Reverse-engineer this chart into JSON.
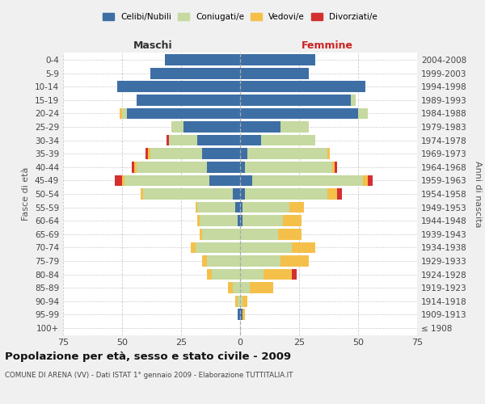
{
  "age_groups": [
    "100+",
    "95-99",
    "90-94",
    "85-89",
    "80-84",
    "75-79",
    "70-74",
    "65-69",
    "60-64",
    "55-59",
    "50-54",
    "45-49",
    "40-44",
    "35-39",
    "30-34",
    "25-29",
    "20-24",
    "15-19",
    "10-14",
    "5-9",
    "0-4"
  ],
  "birth_years": [
    "≤ 1908",
    "1909-1913",
    "1914-1918",
    "1919-1923",
    "1924-1928",
    "1929-1933",
    "1934-1938",
    "1939-1943",
    "1944-1948",
    "1949-1953",
    "1954-1958",
    "1959-1963",
    "1964-1968",
    "1969-1973",
    "1974-1978",
    "1979-1983",
    "1984-1988",
    "1989-1993",
    "1994-1998",
    "1999-2003",
    "2004-2008"
  ],
  "males": {
    "celibi": [
      0,
      1,
      0,
      0,
      0,
      0,
      0,
      0,
      1,
      2,
      3,
      13,
      14,
      16,
      18,
      24,
      48,
      44,
      52,
      38,
      32
    ],
    "coniugati": [
      0,
      0,
      1,
      3,
      12,
      14,
      19,
      16,
      16,
      16,
      38,
      36,
      30,
      22,
      12,
      5,
      2,
      0,
      0,
      0,
      0
    ],
    "vedovi": [
      0,
      0,
      1,
      2,
      2,
      2,
      2,
      1,
      1,
      1,
      1,
      1,
      1,
      1,
      0,
      0,
      1,
      0,
      0,
      0,
      0
    ],
    "divorziati": [
      0,
      0,
      0,
      0,
      0,
      0,
      0,
      0,
      0,
      0,
      0,
      3,
      1,
      1,
      1,
      0,
      0,
      0,
      0,
      0,
      0
    ]
  },
  "females": {
    "nubili": [
      0,
      1,
      0,
      0,
      0,
      0,
      0,
      0,
      1,
      1,
      2,
      5,
      2,
      3,
      9,
      17,
      50,
      47,
      53,
      29,
      32
    ],
    "coniugate": [
      0,
      0,
      1,
      4,
      10,
      17,
      22,
      16,
      17,
      20,
      35,
      47,
      37,
      34,
      23,
      12,
      4,
      2,
      0,
      0,
      0
    ],
    "vedove": [
      0,
      1,
      2,
      10,
      12,
      12,
      10,
      10,
      8,
      6,
      4,
      2,
      1,
      1,
      0,
      0,
      0,
      0,
      0,
      0,
      0
    ],
    "divorziate": [
      0,
      0,
      0,
      0,
      2,
      0,
      0,
      0,
      0,
      0,
      2,
      2,
      1,
      0,
      0,
      0,
      0,
      0,
      0,
      0,
      0
    ]
  },
  "colors": {
    "celibi": "#3d6fa5",
    "coniugati": "#c5d9a0",
    "vedovi": "#f5c04a",
    "divorziati": "#d43030"
  },
  "xlim": 75,
  "title": "Popolazione per età, sesso e stato civile - 2009",
  "subtitle": "COMUNE DI ARENA (VV) - Dati ISTAT 1° gennaio 2009 - Elaborazione TUTTITALIA.IT",
  "ylabel_left": "Fasce di età",
  "ylabel_right": "Anni di nascita",
  "xlabel_left": "Maschi",
  "xlabel_right": "Femmine",
  "bg_color": "#f0f0f0",
  "plot_bg_color": "#ffffff",
  "legend_labels": [
    "Celibi/Nubili",
    "Coniugati/e",
    "Vedovi/e",
    "Divorziati/e"
  ]
}
